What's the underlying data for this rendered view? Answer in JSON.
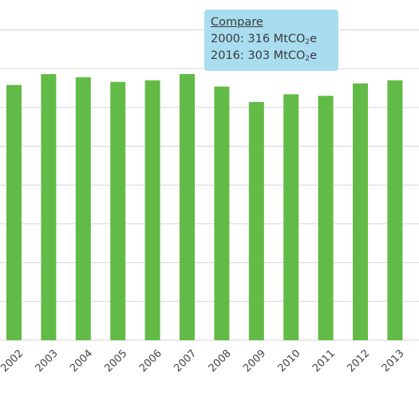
{
  "chart_data": {
    "type": "bar",
    "categories": [
      "2002",
      "2003",
      "2004",
      "2005",
      "2006",
      "2007",
      "2008",
      "2009",
      "2010",
      "2011",
      "2012",
      "2013"
    ],
    "series": [
      {
        "values": [
          329,
          343,
          339,
          333,
          335,
          343,
          327,
          307,
          317,
          315,
          331,
          335
        ],
        "color": "#62bb46"
      }
    ],
    "grid": true,
    "gridline_color": "#d6d6d6",
    "xlabel": "",
    "ylabel": ""
  },
  "tooltip": {
    "title": "Compare",
    "line1_prefix": "2000: 316 MtCO",
    "line1_sub": "2",
    "line1_suffix": "e",
    "line2_prefix": "2016: 303 MtCO",
    "line2_sub": "2",
    "line2_suffix": "e"
  }
}
